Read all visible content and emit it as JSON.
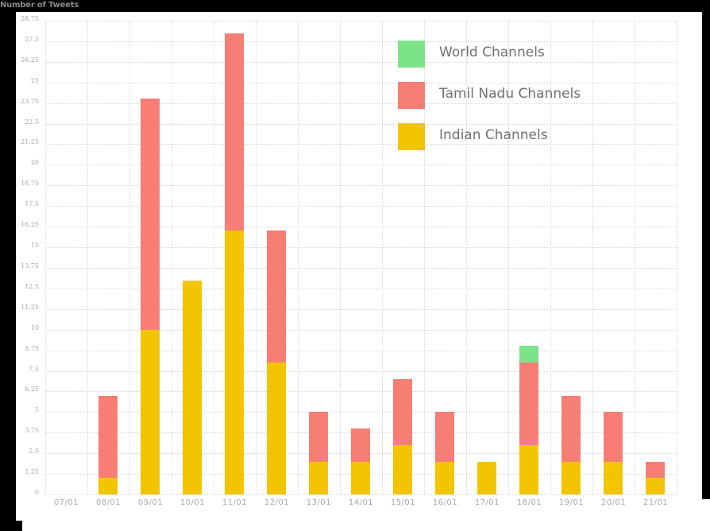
{
  "chart_data": {
    "type": "bar",
    "stacked": true,
    "title": "",
    "ylabel": "Number of Tweets",
    "xlabel": "",
    "ylim": [
      0,
      28.75
    ],
    "yticks": [
      "0",
      "1.25",
      "2.5",
      "3.75",
      "5",
      "6.25",
      "7.5",
      "8.75",
      "10",
      "11.25",
      "12.5",
      "13.75",
      "15",
      "16.25",
      "17.5",
      "18.75",
      "20",
      "21.25",
      "22.5",
      "23.75",
      "25",
      "26.25",
      "27.5",
      "28.75"
    ],
    "grid": true,
    "legend_position": "top-right",
    "categories": [
      "07/01",
      "08/01",
      "09/01",
      "10/01",
      "11/01",
      "12/01",
      "13/01",
      "14/01",
      "15/01",
      "16/01",
      "17/01",
      "18/01",
      "19/01",
      "20/01",
      "21/01"
    ],
    "series": [
      {
        "name": "Indian Channels",
        "color": "#f2c500",
        "values": [
          0,
          1,
          10,
          13,
          16,
          8,
          2,
          2,
          3,
          2,
          2,
          3,
          2,
          2,
          1
        ]
      },
      {
        "name": "Tamil Nadu Channels",
        "color": "#f67e75",
        "values": [
          0,
          5,
          14,
          0,
          12,
          8,
          3,
          2,
          4,
          3,
          0,
          5,
          4,
          3,
          1
        ]
      },
      {
        "name": "World Channels",
        "color": "#7de389",
        "values": [
          0,
          0,
          0,
          0,
          0,
          0,
          0,
          0,
          0,
          0,
          0,
          1,
          0,
          0,
          0
        ]
      }
    ],
    "legend": [
      "World Channels",
      "Tamil Nadu Channels",
      "Indian Channels"
    ]
  },
  "colors": {
    "background": "#000000",
    "panel": "#ffffff",
    "grid": "#d6d6d6",
    "tick_text": "#a8a8a8",
    "legend_text": "#707070"
  }
}
